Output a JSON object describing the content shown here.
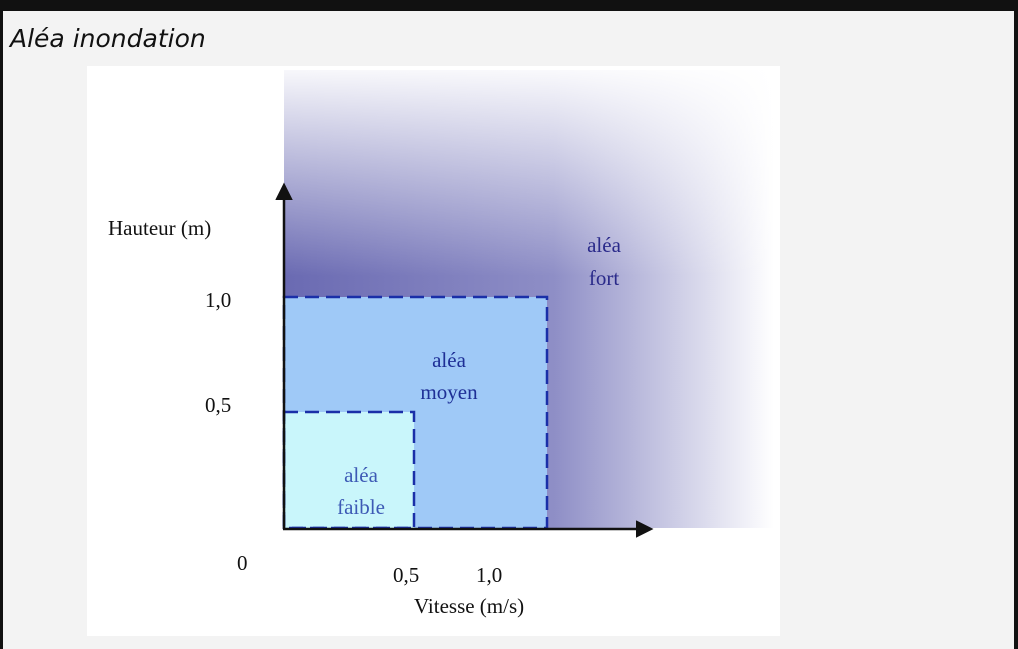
{
  "title": "Aléa inondation",
  "diagram": {
    "y_axis_label": "Hauteur (m)",
    "x_axis_label": "Vitesse (m/s)",
    "origin_label": "0",
    "y_ticks": [
      "1,0",
      "0,5"
    ],
    "x_ticks": [
      "0,5",
      "1,0"
    ],
    "zones": {
      "faible": {
        "line1": "aléa",
        "line2": "faible"
      },
      "moyen": {
        "line1": "aléa",
        "line2": "moyen"
      },
      "fort": {
        "line1": "aléa",
        "line2": "fort"
      }
    },
    "colors": {
      "fort_dark": "#6e6eb4",
      "moyen_fill": "#9fc9f7",
      "faible_fill": "#c9f6fb",
      "dash_border": "#1a2fa8",
      "axis": "#111111",
      "zone_text_fort": "#2a2a8a",
      "zone_text_moyen": "#1e2f96",
      "zone_text_faible": "#3d5ab5"
    }
  }
}
